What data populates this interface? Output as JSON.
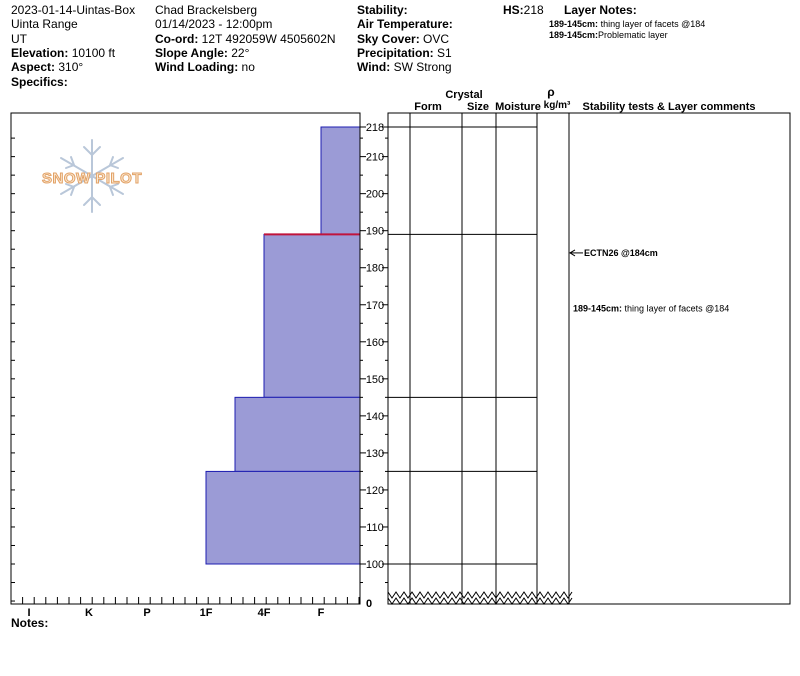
{
  "header": {
    "pit_name": "2023-01-14-Uintas-Box",
    "range": "Uinta Range",
    "state": "UT",
    "elevation_label": "Elevation:",
    "elevation_value": "10100 ft",
    "aspect_label": "Aspect:",
    "aspect_value": "310°",
    "specifics_label": "Specifics:",
    "observer": "Chad Brackelsberg",
    "datetime": "01/14/2023 - 12:00pm",
    "coord_label": "Co-ord:",
    "coord_value": "12T 492059W 4505602N",
    "slope_label": "Slope Angle:",
    "slope_value": "22°",
    "wind_loading_label": "Wind Loading:",
    "wind_loading_value": "no",
    "stability_label": "Stability:",
    "air_temp_label": "Air Temperature:",
    "sky_cover_label": "Sky Cover:",
    "sky_cover_value": "OVC",
    "precip_label": "Precipitation:",
    "precip_value": "S1",
    "wind_label": "Wind:",
    "wind_value": "SW Strong",
    "hs_label": "HS:",
    "hs_value": "218",
    "layer_notes_label": "Layer Notes:",
    "layer_notes": [
      {
        "range": "189-145cm:",
        "text": "thing layer of facets @184"
      },
      {
        "range": "189-145cm:",
        "text": "Problematic layer"
      }
    ],
    "notes_label": "Notes:"
  },
  "logo": {
    "text": "SNOW PILOT"
  },
  "columns": {
    "crystal": "Crystal",
    "form": "Form",
    "size": "Size",
    "moisture": "Moisture",
    "rho": "ρ",
    "density": "kg/m³",
    "stability": "Stability tests & Layer comments"
  },
  "chart_data": {
    "type": "bar",
    "orientation": "horizontal",
    "hardness_scale": [
      "I",
      "K",
      "P",
      "1F",
      "4F",
      "F"
    ],
    "depth_ticks": [
      100,
      110,
      120,
      130,
      140,
      150,
      160,
      170,
      180,
      190,
      200,
      210,
      218
    ],
    "depth_range": [
      100,
      218
    ],
    "zero_label": "0",
    "layers": [
      {
        "top": 218,
        "bottom": 189,
        "hardness": "F"
      },
      {
        "top": 189,
        "bottom": 145,
        "hardness": "4F"
      },
      {
        "top": 145,
        "bottom": 125,
        "hardness": "4F-1F"
      },
      {
        "top": 125,
        "bottom": 100,
        "hardness": "1F"
      }
    ],
    "problem_layer_depth": 189,
    "layer_boundaries": [
      218,
      189,
      145,
      125,
      100
    ],
    "colors": {
      "fill": "#9b9bd6",
      "edge": "#1c1cb0",
      "problem": "#c0143c"
    },
    "annotations": [
      {
        "depth": 184,
        "text": "ECTN26 @184cm",
        "arrow": true
      },
      {
        "depth": 169,
        "label": "189-145cm:",
        "text": "thing layer of facets @184"
      }
    ]
  }
}
